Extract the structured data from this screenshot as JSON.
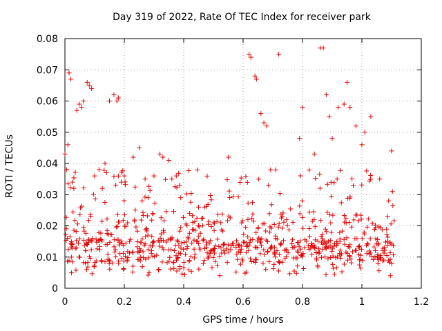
{
  "chart_data": {
    "type": "scatter",
    "title": "Day 319 of 2022, Rate Of TEC Index for receiver park",
    "xlabel": "GPS time / hours",
    "ylabel": "ROTI / TECUs",
    "xlim": [
      0,
      1.2
    ],
    "ylim": [
      0,
      0.08
    ],
    "xticks": [
      "0",
      "0.2",
      "0.4",
      "0.6",
      "0.8",
      "1",
      "1.2"
    ],
    "yticks": [
      "0",
      "0.01",
      "0.02",
      "0.03",
      "0.04",
      "0.05",
      "0.06",
      "0.07",
      "0.08"
    ],
    "grid": true,
    "marker": "plus",
    "color": "#e00000",
    "series": [
      {
        "x": [
          0.0,
          0.006,
          0.01,
          0.014,
          0.02,
          0.025,
          0.03,
          0.04,
          0.048,
          0.056,
          0.062,
          0.075,
          0.082,
          0.09,
          0.1,
          0.115,
          0.135,
          0.15,
          0.165,
          0.175,
          0.18,
          0.19,
          0.2,
          0.23,
          0.25,
          0.26,
          0.27,
          0.28,
          0.3,
          0.32,
          0.33,
          0.35,
          0.36,
          0.375,
          0.39,
          0.42,
          0.45,
          0.47,
          0.5,
          0.55,
          0.62,
          0.626,
          0.64,
          0.645,
          0.66,
          0.67,
          0.68,
          0.72,
          0.79,
          0.8,
          0.84,
          0.86,
          0.87,
          0.88,
          0.89,
          0.9,
          0.92,
          0.94,
          0.95,
          0.96,
          0.98,
          1.0,
          1.01,
          1.03,
          1.06,
          1.09,
          1.1
        ],
        "y": [
          0.043,
          0.038,
          0.046,
          0.069,
          0.067,
          0.034,
          0.032,
          0.057,
          0.059,
          0.058,
          0.06,
          0.066,
          0.065,
          0.064,
          0.036,
          0.038,
          0.04,
          0.06,
          0.062,
          0.06,
          0.061,
          0.034,
          0.036,
          0.042,
          0.045,
          0.028,
          0.035,
          0.029,
          0.036,
          0.043,
          0.042,
          0.041,
          0.035,
          0.036,
          0.029,
          0.024,
          0.026,
          0.026,
          0.021,
          0.042,
          0.075,
          0.074,
          0.068,
          0.067,
          0.056,
          0.053,
          0.052,
          0.075,
          0.048,
          0.058,
          0.043,
          0.077,
          0.077,
          0.062,
          0.055,
          0.048,
          0.058,
          0.059,
          0.066,
          0.058,
          0.052,
          0.046,
          0.05,
          0.055,
          0.035,
          0.028,
          0.044
        ]
      }
    ]
  }
}
